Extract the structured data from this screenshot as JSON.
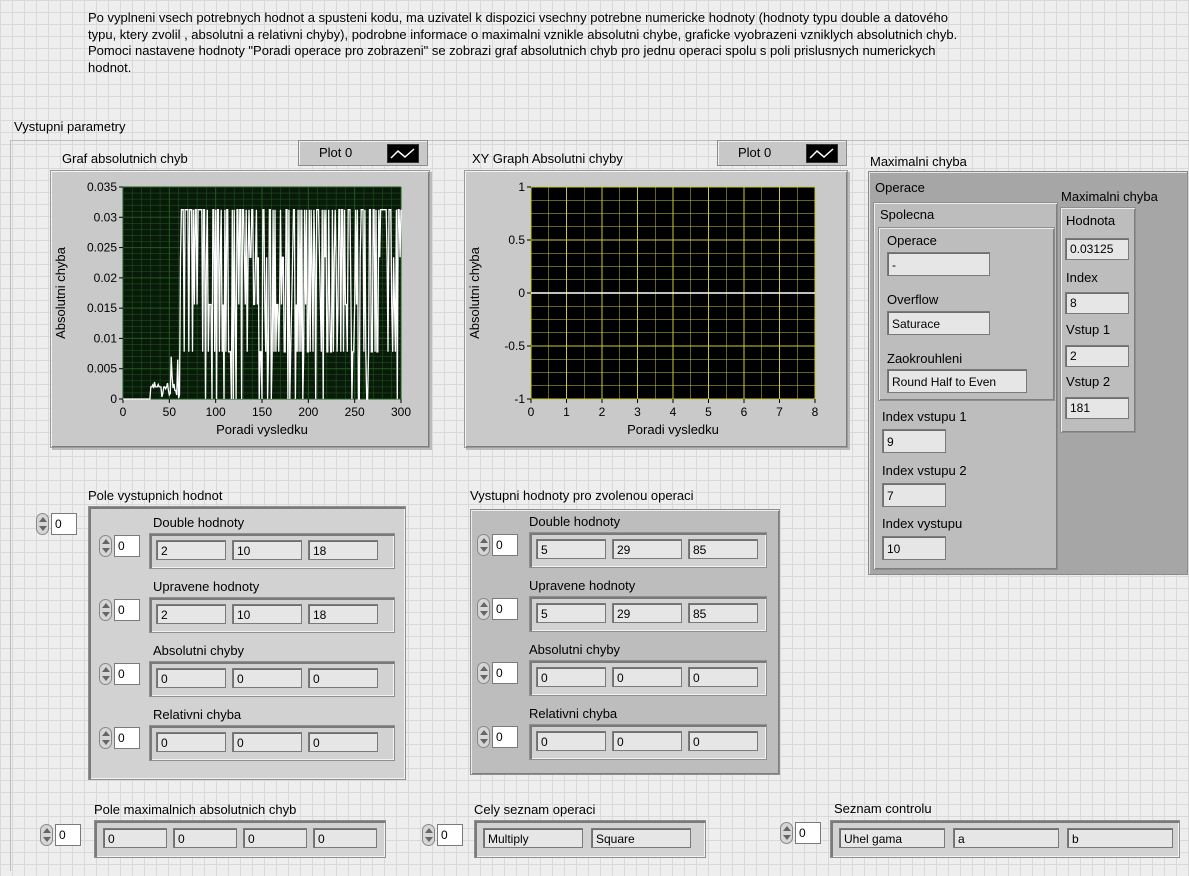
{
  "description": "Po vyplneni vsech potrebnych hodnot a spusteni kodu, ma uzivatel k dispozici vsechny potrebne numericke hodnoty (hodnoty typu double a datového typu, ktery zvolil , absolutni a relativni chyby), podrobne informace o maximalni vznikle absolutni chybe, graficke vyobrazeni vzniklych absolutnich chyb. Pomoci nastavene hodnoty \"Poradi operace pro zobrazeni\" se zobrazi graf absolutnich chyb pro jednu operaci spolu s poli prislusnych numerickych hodnot.",
  "section_label": "Vystupni parametry",
  "graph1": {
    "title": "Graf absolutnich chyb",
    "legend": "Plot 0",
    "chart_data": {
      "type": "line",
      "xlabel": "Poradi vysledku",
      "ylabel": "Absolutni chyba",
      "xlim": [
        0,
        300
      ],
      "ylim": [
        0,
        0.035
      ],
      "x_ticks": [
        "0",
        "50",
        "100",
        "150",
        "200",
        "250",
        "300"
      ],
      "y_ticks": [
        "0",
        "0.005",
        "0.01",
        "0.015",
        "0.02",
        "0.025",
        "0.03",
        "0.035"
      ],
      "grid": true,
      "background": "#0a1a0a",
      "grid_color": "#1f5c1f",
      "line_color": "#ffffff"
    }
  },
  "graph2": {
    "title": "XY Graph Absolutni chyby",
    "legend": "Plot 0",
    "chart_data": {
      "type": "line",
      "xlabel": "Poradi vysledku",
      "ylabel": "Absolutni chyba",
      "xlim": [
        0,
        8
      ],
      "ylim": [
        -1,
        1
      ],
      "x_ticks": [
        "0",
        "1",
        "2",
        "3",
        "4",
        "5",
        "6",
        "7",
        "8"
      ],
      "y_ticks": [
        "-1",
        "-0.5",
        "0",
        "0.5",
        "1"
      ],
      "series": [
        {
          "x": [
            0,
            8
          ],
          "y": [
            0,
            0
          ]
        }
      ],
      "grid": true,
      "background": "#000000",
      "grid_color": "#c8c83a",
      "line_color": "#ffffff"
    }
  },
  "max": {
    "title": "Maximalni chyba",
    "operace_label": "Operace",
    "spolecna_label": "Spolecna",
    "operace_field_label": "Operace",
    "operace_value": "-",
    "overflow_label": "Overflow",
    "overflow_value": "Saturace",
    "zaokrouhleni_label": "Zaokrouhleni",
    "zaokrouhleni_value": "Round Half to Even",
    "index_vstupu1_label": "Index vstupu 1",
    "index_vstupu1_value": "9",
    "index_vstupu2_label": "Index vstupu 2",
    "index_vstupu2_value": "7",
    "index_vystupu_label": "Index vystupu",
    "index_vystupu_value": "10",
    "maxchyba_label": "Maximalni chyba",
    "hodnota_label": "Hodnota",
    "hodnota_value": "0.03125",
    "index_label": "Index",
    "index_value": "8",
    "vstup1_label": "Vstup 1",
    "vstup1_value": "2",
    "vstup2_label": "Vstup 2",
    "vstup2_value": "181"
  },
  "pole": {
    "title": "Pole vystupnich hodnot",
    "outer_index": "0",
    "rows": [
      {
        "label": "Double hodnoty",
        "index": "0",
        "values": [
          "2",
          "10",
          "18"
        ]
      },
      {
        "label": "Upravene hodnoty",
        "index": "0",
        "values": [
          "2",
          "10",
          "18"
        ]
      },
      {
        "label": "Absolutni chyby",
        "index": "0",
        "values": [
          "0",
          "0",
          "0"
        ]
      },
      {
        "label": "Relativni chyba",
        "index": "0",
        "values": [
          "0",
          "0",
          "0"
        ]
      }
    ]
  },
  "vystupni": {
    "title": "Vystupni hodnoty pro zvolenou operaci",
    "rows": [
      {
        "label": "Double hodnoty",
        "index": "0",
        "values": [
          "5",
          "29",
          "85"
        ]
      },
      {
        "label": "Upravene hodnoty",
        "index": "0",
        "values": [
          "5",
          "29",
          "85"
        ]
      },
      {
        "label": "Absolutni chyby",
        "index": "0",
        "values": [
          "0",
          "0",
          "0"
        ]
      },
      {
        "label": "Relativni chyba",
        "index": "0",
        "values": [
          "0",
          "0",
          "0"
        ]
      }
    ]
  },
  "pole_max": {
    "title": "Pole maximalnich absolutnich chyb",
    "index": "0",
    "values": [
      "0",
      "0",
      "0",
      "0"
    ]
  },
  "cely": {
    "title": "Cely seznam operaci",
    "index": "0",
    "values": [
      "Multiply",
      "Square"
    ]
  },
  "seznam": {
    "title": "Seznam controlu",
    "index": "0",
    "values": [
      "Uhel gama",
      "a",
      "b"
    ]
  }
}
